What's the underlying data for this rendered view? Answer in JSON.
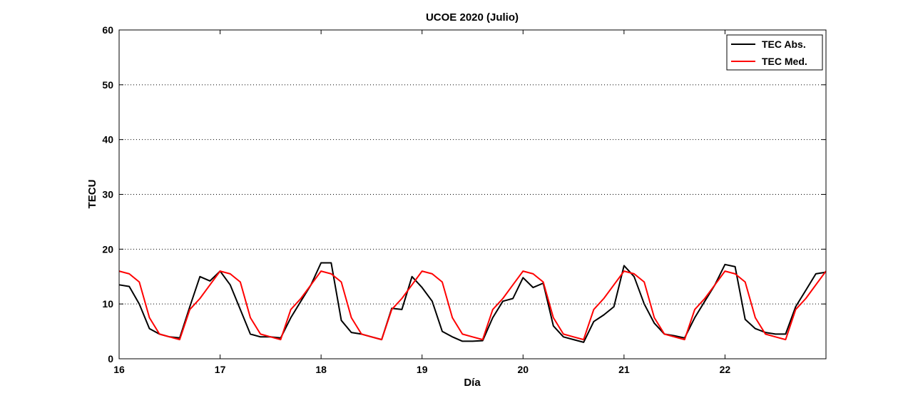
{
  "chart_data": {
    "type": "line",
    "title": "UCOE 2020 (Julio)",
    "xlabel": "Día",
    "ylabel": "TECU",
    "xlim": [
      16,
      23
    ],
    "ylim": [
      0,
      60
    ],
    "xticks": [
      "16",
      "17",
      "18",
      "19",
      "20",
      "21",
      "22"
    ],
    "yticks": [
      "0",
      "10",
      "20",
      "30",
      "40",
      "50",
      "60"
    ],
    "grid": "horizontal-dotted",
    "legend_position": "top-right",
    "series": [
      {
        "name": "TEC Abs.",
        "color": "#000000",
        "x": [
          16.0,
          16.1,
          16.2,
          16.3,
          16.4,
          16.5,
          16.6,
          16.7,
          16.8,
          16.9,
          17.0,
          17.1,
          17.2,
          17.3,
          17.4,
          17.5,
          17.6,
          17.7,
          17.8,
          17.9,
          18.0,
          18.1,
          18.2,
          18.3,
          18.4,
          18.5,
          18.6,
          18.7,
          18.8,
          18.9,
          19.0,
          19.1,
          19.2,
          19.3,
          19.4,
          19.5,
          19.6,
          19.7,
          19.8,
          19.9,
          20.0,
          20.1,
          20.2,
          20.3,
          20.4,
          20.5,
          20.6,
          20.7,
          20.8,
          20.9,
          21.0,
          21.1,
          21.2,
          21.3,
          21.4,
          21.5,
          21.6,
          21.7,
          21.8,
          21.9,
          22.0,
          22.1,
          22.2,
          22.3,
          22.4,
          22.5,
          22.6,
          22.7,
          22.8,
          22.9,
          23.0
        ],
        "y": [
          13.5,
          13.2,
          10.0,
          5.5,
          4.5,
          4.0,
          3.8,
          9.5,
          15.0,
          14.2,
          16.0,
          13.5,
          9.0,
          4.5,
          4.0,
          4.0,
          3.8,
          7.5,
          10.5,
          13.5,
          17.5,
          17.5,
          7.0,
          4.8,
          4.5,
          4.0,
          3.5,
          9.2,
          9.0,
          15.0,
          13.0,
          10.5,
          5.0,
          4.0,
          3.2,
          3.2,
          3.3,
          7.5,
          10.5,
          11.0,
          14.8,
          13.0,
          13.8,
          6.0,
          4.0,
          3.5,
          3.0,
          6.8,
          8.0,
          9.5,
          17.0,
          15.0,
          10.0,
          6.5,
          4.5,
          4.2,
          3.8,
          7.5,
          10.5,
          13.5,
          17.2,
          16.8,
          7.2,
          5.5,
          4.8,
          4.5,
          4.5,
          9.5,
          12.5,
          15.5,
          15.8
        ]
      },
      {
        "name": "TEC Med.",
        "color": "#ff0000",
        "x": [
          16.0,
          16.1,
          16.2,
          16.3,
          16.4,
          16.5,
          16.6,
          16.7,
          16.8,
          16.9,
          17.0,
          17.1,
          17.2,
          17.3,
          17.4,
          17.5,
          17.6,
          17.7,
          17.8,
          17.9,
          18.0,
          18.1,
          18.2,
          18.3,
          18.4,
          18.5,
          18.6,
          18.7,
          18.8,
          18.9,
          19.0,
          19.1,
          19.2,
          19.3,
          19.4,
          19.5,
          19.6,
          19.7,
          19.8,
          19.9,
          20.0,
          20.1,
          20.2,
          20.3,
          20.4,
          20.5,
          20.6,
          20.7,
          20.8,
          20.9,
          21.0,
          21.1,
          21.2,
          21.3,
          21.4,
          21.5,
          21.6,
          21.7,
          21.8,
          21.9,
          22.0,
          22.1,
          22.2,
          22.3,
          22.4,
          22.5,
          22.6,
          22.7,
          22.8,
          22.9,
          23.0
        ],
        "y": [
          16.0,
          15.5,
          14.0,
          7.5,
          4.5,
          4.0,
          3.5,
          9.0,
          11.0,
          13.5,
          16.0,
          15.5,
          14.0,
          7.5,
          4.5,
          4.0,
          3.5,
          9.0,
          11.0,
          13.5,
          16.0,
          15.5,
          14.0,
          7.5,
          4.5,
          4.0,
          3.5,
          9.0,
          11.0,
          13.5,
          16.0,
          15.5,
          14.0,
          7.5,
          4.5,
          4.0,
          3.5,
          9.0,
          11.0,
          13.5,
          16.0,
          15.5,
          14.0,
          7.5,
          4.5,
          4.0,
          3.5,
          9.0,
          11.0,
          13.5,
          16.0,
          15.5,
          14.0,
          7.5,
          4.5,
          4.0,
          3.5,
          9.0,
          11.0,
          13.5,
          16.0,
          15.5,
          14.0,
          7.5,
          4.5,
          4.0,
          3.5,
          9.0,
          11.0,
          13.5,
          16.0
        ]
      }
    ]
  }
}
